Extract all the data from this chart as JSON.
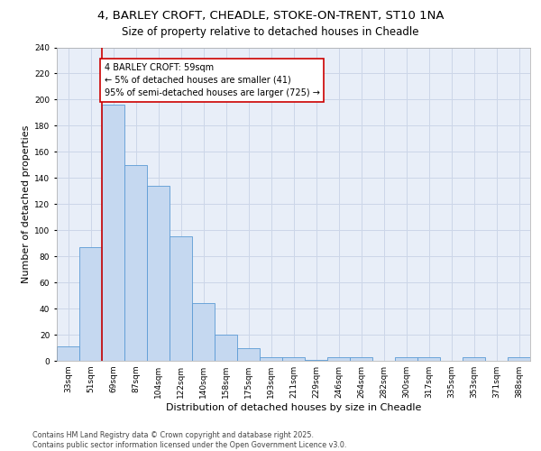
{
  "title_line1": "4, BARLEY CROFT, CHEADLE, STOKE-ON-TRENT, ST10 1NA",
  "title_line2": "Size of property relative to detached houses in Cheadle",
  "xlabel": "Distribution of detached houses by size in Cheadle",
  "ylabel": "Number of detached properties",
  "categories": [
    "33sqm",
    "51sqm",
    "69sqm",
    "87sqm",
    "104sqm",
    "122sqm",
    "140sqm",
    "158sqm",
    "175sqm",
    "193sqm",
    "211sqm",
    "229sqm",
    "246sqm",
    "264sqm",
    "282sqm",
    "300sqm",
    "317sqm",
    "335sqm",
    "353sqm",
    "371sqm",
    "388sqm"
  ],
  "values": [
    11,
    87,
    196,
    150,
    134,
    95,
    44,
    20,
    10,
    3,
    3,
    1,
    3,
    3,
    0,
    3,
    3,
    0,
    3,
    0,
    3
  ],
  "bar_color": "#c5d8f0",
  "bar_edge_color": "#5b9bd5",
  "grid_color": "#ccd6e8",
  "background_color": "#e8eef8",
  "annotation_box_text": "4 BARLEY CROFT: 59sqm\n← 5% of detached houses are smaller (41)\n95% of semi-detached houses are larger (725) →",
  "annotation_box_color": "#cc0000",
  "vline_color": "#cc0000",
  "ylim": [
    0,
    240
  ],
  "yticks": [
    0,
    20,
    40,
    60,
    80,
    100,
    120,
    140,
    160,
    180,
    200,
    220,
    240
  ],
  "footer_text": "Contains HM Land Registry data © Crown copyright and database right 2025.\nContains public sector information licensed under the Open Government Licence v3.0.",
  "title_fontsize": 9.5,
  "subtitle_fontsize": 8.5,
  "axis_label_fontsize": 8,
  "tick_fontsize": 6.5,
  "annotation_fontsize": 7,
  "footer_fontsize": 5.8
}
